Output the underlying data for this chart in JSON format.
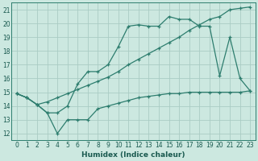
{
  "xlabel": "Humidex (Indice chaleur)",
  "bg_color": "#cce8e0",
  "line_color": "#2d7d6e",
  "grid_color": "#aaccc4",
  "xlim": [
    -0.5,
    23.5
  ],
  "ylim": [
    11.5,
    21.5
  ],
  "xticks": [
    0,
    1,
    2,
    3,
    4,
    5,
    6,
    7,
    8,
    9,
    10,
    11,
    12,
    13,
    14,
    15,
    16,
    17,
    18,
    19,
    20,
    21,
    22,
    23
  ],
  "yticks": [
    12,
    13,
    14,
    15,
    16,
    17,
    18,
    19,
    20,
    21
  ],
  "line1_x": [
    0,
    1,
    2,
    3,
    4,
    5,
    6,
    7,
    8,
    9,
    10,
    11,
    12,
    13,
    14,
    15,
    16,
    17,
    18,
    19,
    20,
    21,
    22,
    23
  ],
  "line1_y": [
    14.9,
    14.6,
    14.1,
    13.5,
    12.0,
    13.0,
    13.0,
    13.0,
    13.8,
    14.0,
    14.2,
    14.4,
    14.6,
    14.7,
    14.8,
    14.9,
    14.9,
    15.0,
    15.0,
    15.0,
    15.0,
    15.0,
    15.0,
    15.1
  ],
  "line2_x": [
    0,
    1,
    2,
    3,
    4,
    5,
    6,
    7,
    8,
    9,
    10,
    11,
    12,
    13,
    14,
    15,
    16,
    17,
    18,
    19,
    20,
    21,
    22,
    23
  ],
  "line2_y": [
    14.9,
    14.6,
    14.1,
    14.3,
    14.6,
    14.9,
    15.2,
    15.5,
    15.8,
    16.1,
    16.5,
    17.0,
    17.4,
    17.8,
    18.2,
    18.6,
    19.0,
    19.5,
    19.9,
    20.3,
    20.5,
    21.0,
    21.1,
    21.2
  ],
  "line3_x": [
    0,
    1,
    2,
    3,
    4,
    5,
    6,
    7,
    8,
    9,
    10,
    11,
    12,
    13,
    14,
    15,
    16,
    17,
    18,
    19,
    20,
    21,
    22,
    23
  ],
  "line3_y": [
    14.9,
    14.6,
    14.1,
    13.5,
    13.5,
    14.0,
    15.6,
    16.5,
    16.5,
    17.0,
    18.3,
    19.8,
    19.9,
    19.8,
    19.8,
    20.5,
    20.3,
    20.3,
    19.8,
    19.8,
    16.2,
    19.0,
    16.0,
    15.1
  ]
}
